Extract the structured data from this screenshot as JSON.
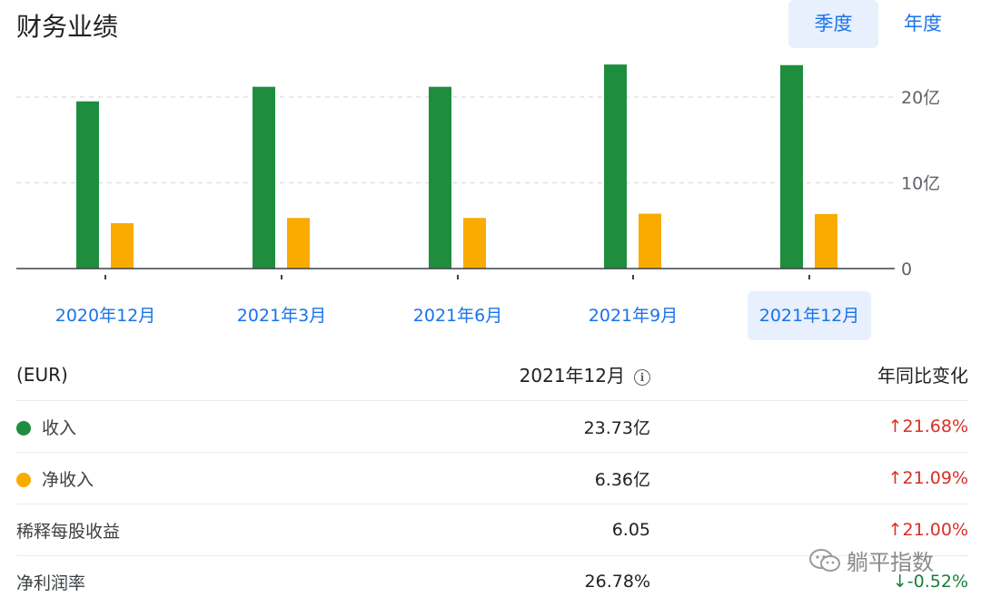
{
  "title": "财务业绩",
  "period_toggle": {
    "quarterly": "季度",
    "annual": "年度",
    "selected": "quarterly"
  },
  "colors": {
    "revenue": "#1e8e3e",
    "net_income": "#f9ab00",
    "accent": "#1a73e8",
    "up": "#d93025",
    "down": "#188038"
  },
  "chart_data": {
    "type": "bar",
    "categories": [
      "2020年12月",
      "2021年3月",
      "2021年6月",
      "2021年9月",
      "2021年12月"
    ],
    "selected_category": "2021年12月",
    "series": [
      {
        "key": "revenue",
        "values": [
          19.5,
          21.2,
          21.2,
          23.8,
          23.73
        ]
      },
      {
        "key": "net_income",
        "values": [
          5.3,
          5.9,
          5.9,
          6.4,
          6.36
        ]
      }
    ],
    "yticks": [
      "0",
      "10亿",
      "20亿"
    ],
    "ytick_values": [
      0,
      10,
      20
    ],
    "ylim": [
      0,
      24
    ],
    "grid": true,
    "y_axis_position": "right"
  },
  "table": {
    "header": {
      "currency": "(EUR)",
      "period": "2021年12月",
      "change": "年同比变化",
      "info_icon": "info-icon"
    },
    "rows": [
      {
        "label": "收入",
        "value": "23.73亿",
        "change": "21.68%",
        "direction": "up",
        "dot": "revenue"
      },
      {
        "label": "净收入",
        "value": "6.36亿",
        "change": "21.09%",
        "direction": "up",
        "dot": "net_income"
      },
      {
        "label": "稀释每股收益",
        "value": "6.05",
        "change": "21.00%",
        "direction": "up"
      },
      {
        "label": "净利润率",
        "value": "26.78%",
        "change": "-0.52%",
        "direction": "down"
      }
    ]
  },
  "watermark": {
    "text": "躺平指数",
    "icon": "wechat-icon"
  }
}
